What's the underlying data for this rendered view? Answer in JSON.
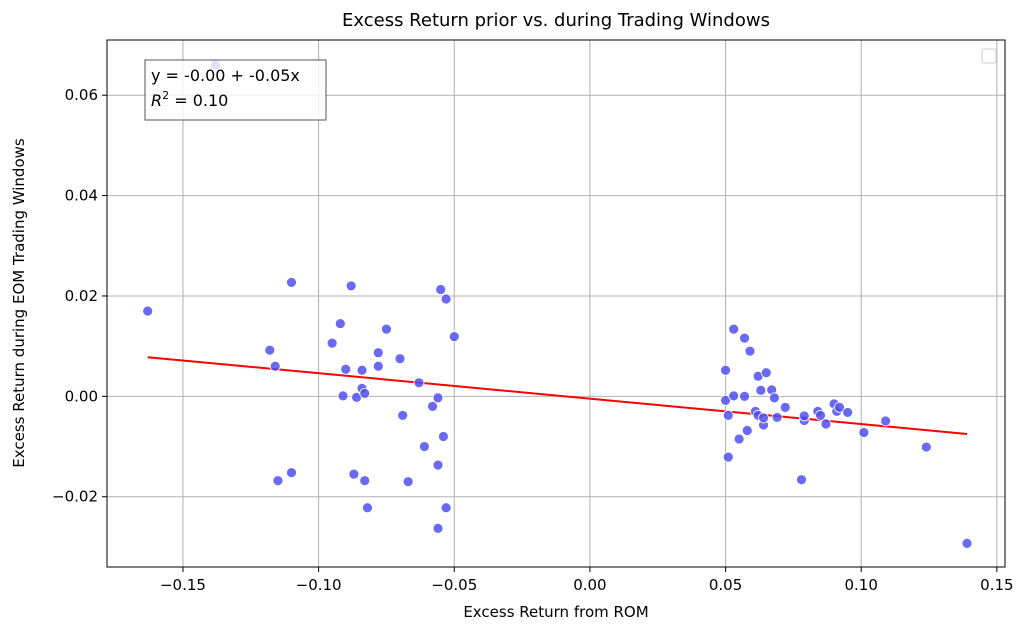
{
  "chart_data": {
    "type": "scatter",
    "title": "Excess Return prior vs. during Trading Windows",
    "xlabel": "Excess Return from ROM",
    "ylabel": "Excess Return during EOM Trading Windows",
    "xlim": [
      -0.178,
      0.153
    ],
    "ylim": [
      -0.034,
      0.071
    ],
    "xticks": [
      -0.15,
      -0.1,
      -0.05,
      0.0,
      0.05,
      0.1,
      0.15
    ],
    "xtick_labels": [
      "−0.15",
      "−0.10",
      "−0.05",
      "0.00",
      "0.05",
      "0.10",
      "0.15"
    ],
    "yticks": [
      -0.02,
      0.0,
      0.02,
      0.04,
      0.06
    ],
    "ytick_labels": [
      "−0.02",
      "0.00",
      "0.02",
      "0.04",
      "0.06"
    ],
    "grid": true,
    "legend": "top-right (empty)",
    "colors": {
      "points": "#4f4ff0",
      "fit_line": "#ff0000",
      "grid": "#b0b0b0"
    },
    "annotation": {
      "equation": "y = -0.00 + -0.05x",
      "r2_symbol": "R",
      "r2_exp": "2",
      "r2_value": " = 0.10"
    },
    "fit": {
      "x": [
        -0.163,
        0.139
      ],
      "y": [
        0.0078,
        -0.0075
      ]
    },
    "points": [
      [
        -0.163,
        0.017
      ],
      [
        -0.138,
        0.066
      ],
      [
        -0.118,
        0.0092
      ],
      [
        -0.116,
        0.006
      ],
      [
        -0.115,
        -0.0168
      ],
      [
        -0.11,
        0.0227
      ],
      [
        -0.11,
        -0.0152
      ],
      [
        -0.095,
        0.0106
      ],
      [
        -0.092,
        0.0145
      ],
      [
        -0.091,
        0.0001
      ],
      [
        -0.09,
        0.0054
      ],
      [
        -0.088,
        0.022
      ],
      [
        -0.087,
        -0.0155
      ],
      [
        -0.086,
        -0.0002
      ],
      [
        -0.084,
        0.0052
      ],
      [
        -0.084,
        0.0016
      ],
      [
        -0.083,
        -0.0168
      ],
      [
        -0.083,
        0.0006
      ],
      [
        -0.082,
        -0.0222
      ],
      [
        -0.078,
        0.0087
      ],
      [
        -0.078,
        0.006
      ],
      [
        -0.075,
        0.0134
      ],
      [
        -0.07,
        0.0075
      ],
      [
        -0.069,
        -0.0038
      ],
      [
        -0.067,
        -0.017
      ],
      [
        -0.063,
        0.0027
      ],
      [
        -0.061,
        -0.01
      ],
      [
        -0.058,
        -0.002
      ],
      [
        -0.056,
        -0.0003
      ],
      [
        -0.056,
        -0.0137
      ],
      [
        -0.056,
        -0.0263
      ],
      [
        -0.055,
        0.0213
      ],
      [
        -0.054,
        -0.008
      ],
      [
        -0.053,
        0.0194
      ],
      [
        -0.053,
        -0.0222
      ],
      [
        -0.05,
        0.0119
      ],
      [
        0.05,
        0.0052
      ],
      [
        0.05,
        -0.0008
      ],
      [
        0.051,
        -0.0038
      ],
      [
        0.051,
        -0.0121
      ],
      [
        0.053,
        0.0134
      ],
      [
        0.053,
        0.0001
      ],
      [
        0.055,
        -0.0085
      ],
      [
        0.057,
        0.0116
      ],
      [
        0.057,
        0.0
      ],
      [
        0.058,
        -0.0068
      ],
      [
        0.059,
        0.009
      ],
      [
        0.061,
        -0.003
      ],
      [
        0.062,
        0.004
      ],
      [
        0.062,
        -0.0038
      ],
      [
        0.063,
        0.0012
      ],
      [
        0.064,
        -0.0057
      ],
      [
        0.064,
        -0.0043
      ],
      [
        0.065,
        0.0047
      ],
      [
        0.067,
        0.0013
      ],
      [
        0.068,
        -0.0003
      ],
      [
        0.069,
        -0.0042
      ],
      [
        0.072,
        -0.0022
      ],
      [
        0.078,
        -0.0166
      ],
      [
        0.079,
        -0.0048
      ],
      [
        0.079,
        -0.0039
      ],
      [
        0.084,
        -0.003
      ],
      [
        0.085,
        -0.0038
      ],
      [
        0.087,
        -0.0055
      ],
      [
        0.09,
        -0.0015
      ],
      [
        0.091,
        -0.003
      ],
      [
        0.092,
        -0.0022
      ],
      [
        0.095,
        -0.0032
      ],
      [
        0.101,
        -0.0072
      ],
      [
        0.109,
        -0.0049
      ],
      [
        0.124,
        -0.0101
      ],
      [
        0.139,
        -0.0293
      ]
    ]
  }
}
